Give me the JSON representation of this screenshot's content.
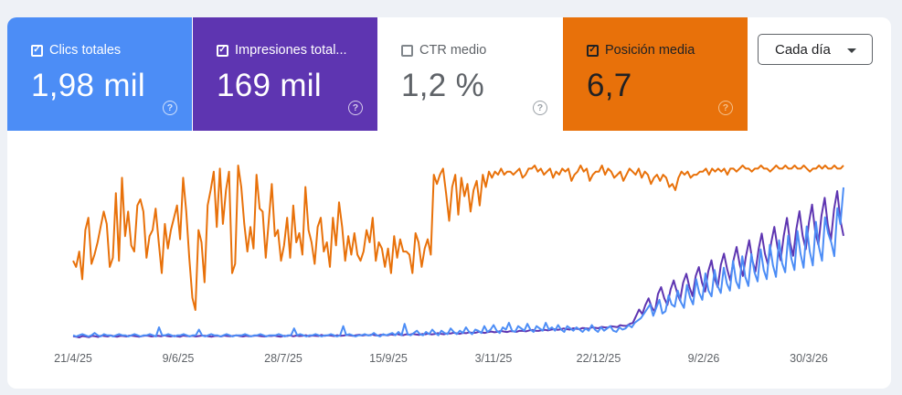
{
  "metrics": [
    {
      "label": "Clics totales",
      "value": "1,98 mil",
      "checked": true,
      "color": "#4c8df6"
    },
    {
      "label": "Impresiones total...",
      "value": "169 mil",
      "checked": true,
      "color": "#5e35b1"
    },
    {
      "label": "CTR medio",
      "value": "1,2 %",
      "checked": false,
      "color": "#ffffff"
    },
    {
      "label": "Posición media",
      "value": "6,7",
      "checked": true,
      "color": "#e8710a"
    }
  ],
  "help_symbol": "?",
  "check_symbol": "✓",
  "dropdown": {
    "label": "Cada día"
  },
  "chart_data": {
    "type": "line",
    "x_labels": [
      "21/4/25",
      "9/6/25",
      "28/7/25",
      "15/9/25",
      "3/11/25",
      "22/12/25",
      "9/2/26",
      "30/3/26"
    ],
    "series": [
      {
        "name": "Posición media",
        "color": "#e8710a",
        "values": [
          36,
          38,
          33,
          42,
          26,
          22,
          37,
          34,
          30,
          25,
          20,
          24,
          38,
          35,
          14,
          36,
          9,
          28,
          20,
          31,
          33,
          18,
          16,
          20,
          35,
          28,
          26,
          19,
          30,
          40,
          24,
          32,
          26,
          22,
          18,
          29,
          9,
          20,
          35,
          48,
          52,
          26,
          30,
          43,
          18,
          13,
          7,
          25,
          6,
          24,
          13,
          7,
          40,
          37,
          5,
          12,
          24,
          33,
          25,
          32,
          8,
          19,
          20,
          35,
          23,
          11,
          28,
          26,
          36,
          31,
          22,
          35,
          18,
          30,
          27,
          34,
          12,
          26,
          30,
          37,
          25,
          22,
          33,
          30,
          38,
          22,
          31,
          17,
          25,
          36,
          28,
          34,
          27,
          34,
          36,
          33,
          26,
          30,
          22,
          36,
          30,
          32,
          38,
          32,
          40,
          28,
          35,
          29,
          33,
          33,
          34,
          40,
          27,
          30,
          38,
          32,
          29,
          34,
          8,
          11,
          8,
          6,
          14,
          23,
          12,
          8,
          21,
          9,
          15,
          11,
          20,
          13,
          10,
          18,
          8,
          12,
          7,
          9,
          7,
          8,
          6,
          8,
          7,
          7,
          8,
          7,
          6,
          9,
          8,
          6,
          6,
          5,
          7,
          6,
          8,
          7,
          6,
          9,
          7,
          8,
          6,
          7,
          6,
          10,
          8,
          7,
          5,
          7,
          6,
          10,
          8,
          7,
          7,
          5,
          8,
          6,
          7,
          9,
          8,
          7,
          10,
          8,
          6,
          7,
          8,
          6,
          9,
          7,
          8,
          11,
          9,
          8,
          10,
          8,
          9,
          12,
          11,
          13,
          9,
          7,
          8,
          7,
          9,
          8,
          8,
          7,
          7,
          6,
          8,
          6,
          7,
          6,
          7,
          6,
          8,
          6,
          6,
          7,
          6,
          5,
          6,
          6,
          7,
          6,
          6,
          5,
          6,
          6,
          7,
          6,
          5,
          6,
          6,
          5,
          6,
          6,
          5,
          6,
          6,
          5,
          6,
          7,
          6,
          6,
          5,
          6,
          5,
          6,
          6,
          5,
          6,
          6,
          5
        ]
      },
      {
        "name": "Impresiones totales",
        "color": "#5e35b1",
        "values": [
          400,
          380,
          350,
          410,
          390,
          360,
          420,
          400,
          370,
          430,
          410,
          390,
          440,
          400,
          380,
          420,
          410,
          390,
          430,
          420,
          400,
          380,
          410,
          430,
          420,
          390,
          410,
          420,
          400,
          440,
          410,
          390,
          420,
          400,
          380,
          430,
          410,
          400,
          420,
          390,
          410,
          430,
          420,
          400,
          380,
          410,
          420,
          390,
          430,
          410,
          400,
          420,
          440,
          410,
          390,
          420,
          400,
          410,
          430,
          420,
          400,
          390,
          420,
          410,
          430,
          400,
          380,
          420,
          410,
          440,
          400,
          430,
          410,
          420,
          450,
          400,
          430,
          420,
          410,
          460,
          420,
          440,
          430,
          410,
          450,
          420,
          430,
          460,
          440,
          420,
          450,
          470,
          430,
          460,
          440,
          480,
          450,
          430,
          470,
          460,
          440,
          480,
          460,
          500,
          470,
          450,
          490,
          470,
          510,
          480,
          460,
          500,
          490,
          520,
          480,
          500,
          540,
          510,
          490,
          530,
          520,
          560,
          530,
          510,
          550,
          540,
          580,
          550,
          560,
          600,
          570,
          550,
          590,
          610,
          580,
          600,
          640,
          610,
          590,
          630,
          620,
          600,
          650,
          640,
          620,
          660,
          680,
          650,
          640,
          670,
          690,
          660,
          700,
          720,
          690,
          710,
          750,
          720,
          700,
          760,
          740,
          720,
          770,
          760,
          740,
          800,
          780,
          760,
          820,
          800,
          790,
          850,
          830,
          810,
          900,
          870,
          860,
          950,
          1000,
          1300,
          1600,
          1400,
          1800,
          2100,
          1700,
          1500,
          2300,
          2600,
          2100,
          1800,
          2500,
          2900,
          2400,
          2000,
          2800,
          3200,
          2600,
          2200,
          3100,
          3500,
          2800,
          2400,
          3300,
          3800,
          3000,
          2600,
          3600,
          4100,
          3400,
          2900,
          3800,
          4400,
          3600,
          3100,
          4000,
          4700,
          3800,
          3300,
          4300,
          5000,
          4100,
          3600,
          4600,
          5300,
          4400,
          3800,
          4900,
          5700,
          4600,
          4000,
          5200,
          6000,
          4900,
          4300,
          5500,
          6300,
          5100,
          4500,
          5800,
          6600,
          5400,
          4700,
          6100,
          6900,
          5600,
          4900
        ]
      },
      {
        "name": "Clics totales",
        "color": "#4c8df6",
        "values": [
          1,
          0,
          1,
          2,
          1,
          0,
          1,
          3,
          1,
          0,
          2,
          1,
          1,
          0,
          1,
          2,
          1,
          1,
          0,
          1,
          2,
          1,
          0,
          1,
          1,
          2,
          1,
          0,
          8,
          1,
          1,
          2,
          1,
          0,
          1,
          1,
          2,
          1,
          0,
          1,
          1,
          6,
          1,
          0,
          1,
          2,
          1,
          1,
          0,
          1,
          2,
          1,
          0,
          1,
          1,
          1,
          2,
          1,
          0,
          1,
          1,
          2,
          1,
          0,
          1,
          1,
          1,
          2,
          1,
          0,
          1,
          1,
          7,
          1,
          2,
          1,
          0,
          1,
          1,
          2,
          1,
          0,
          1,
          1,
          2,
          1,
          0,
          1,
          9,
          1,
          2,
          1,
          0,
          1,
          1,
          2,
          1,
          1,
          3,
          1,
          0,
          2,
          1,
          2,
          3,
          1,
          4,
          1,
          11,
          2,
          1,
          3,
          5,
          2,
          1,
          4,
          2,
          6,
          3,
          1,
          5,
          3,
          2,
          7,
          4,
          2,
          5,
          3,
          8,
          4,
          2,
          6,
          5,
          3,
          9,
          4,
          6,
          10,
          5,
          3,
          8,
          6,
          12,
          5,
          4,
          9,
          7,
          5,
          11,
          6,
          4,
          9,
          7,
          5,
          12,
          6,
          8,
          5,
          10,
          6,
          4,
          9,
          7,
          5,
          8,
          6,
          4,
          7,
          5,
          10,
          6,
          4,
          8,
          5,
          7,
          9,
          5,
          4,
          8,
          6,
          7,
          10,
          8,
          12,
          14,
          16,
          20,
          24,
          28,
          18,
          25,
          32,
          20,
          22,
          36,
          28,
          26,
          40,
          30,
          25,
          45,
          34,
          28,
          50,
          38,
          32,
          55,
          40,
          35,
          58,
          44,
          38,
          60,
          46,
          40,
          66,
          48,
          42,
          70,
          52,
          44,
          72,
          56,
          48,
          76,
          58,
          50,
          80,
          62,
          52,
          84,
          64,
          56,
          88,
          68,
          58,
          92,
          72,
          60,
          96,
          74,
          62,
          100,
          78,
          66,
          104,
          90,
          82,
          70,
          112,
          98,
          130
        ]
      }
    ]
  }
}
